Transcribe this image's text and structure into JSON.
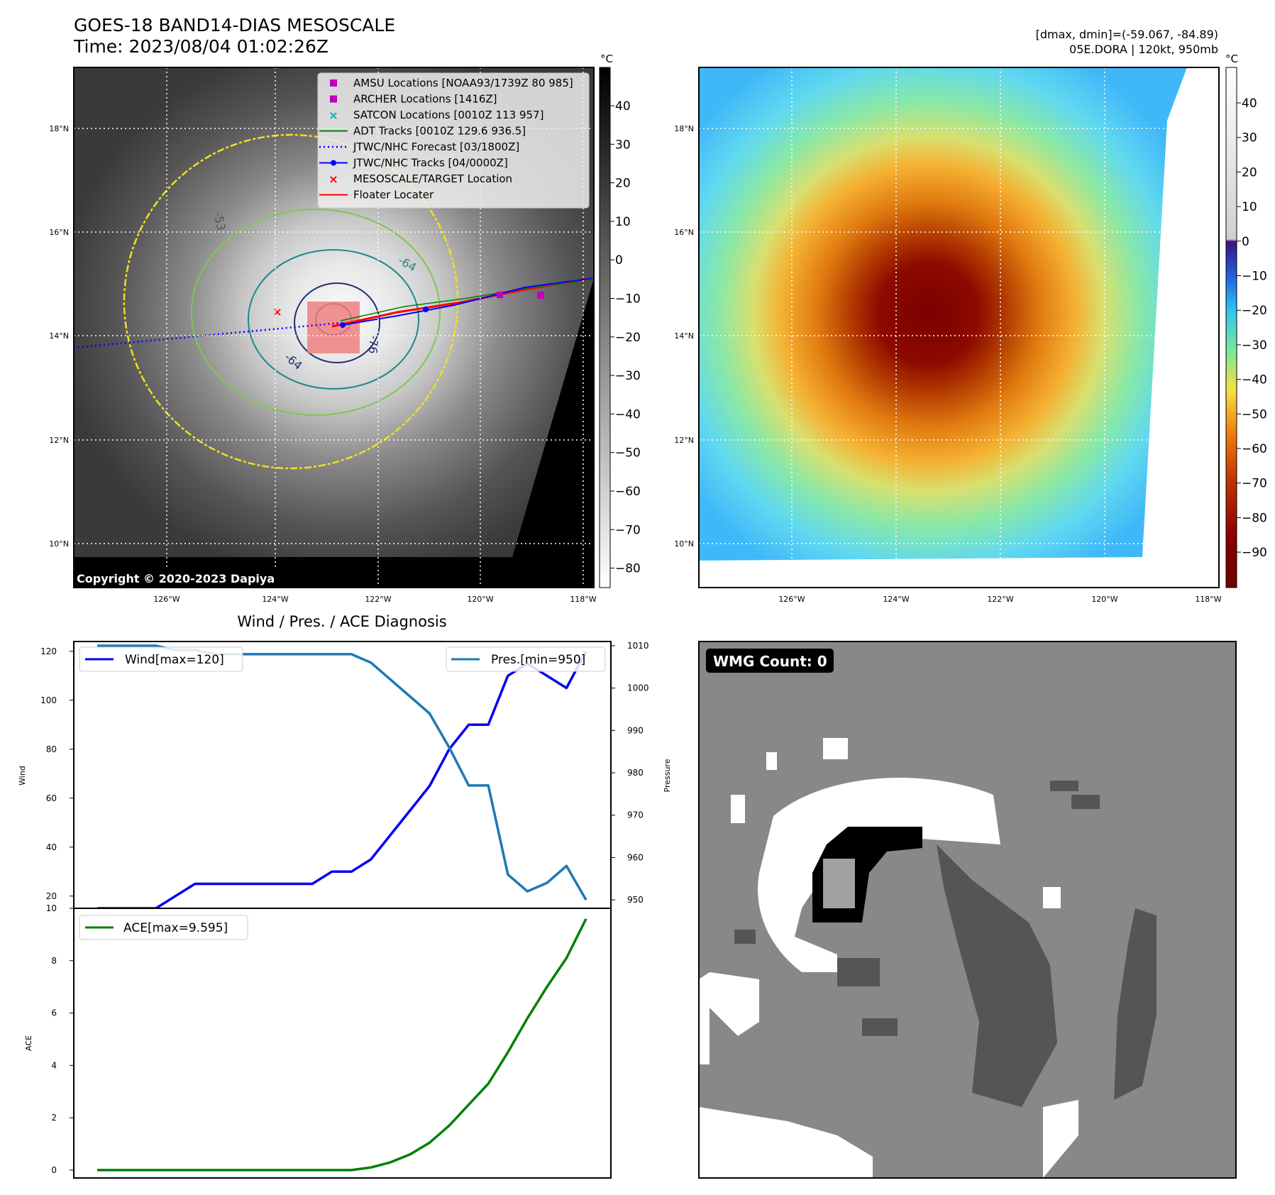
{
  "header": {
    "title_line1": "GOES-18 BAND14-DIAS MESOSCALE",
    "title_line2": "Time: 2023/08/04 01:02:26Z",
    "right_line1": "[dmax, dmin]=(-59.067, -84.89)",
    "right_line2": "05E.DORA | 120kt, 950mb"
  },
  "colorbar_unit": "°C",
  "copyright": "Copyright © 2020-2023 Dapiya",
  "map": {
    "lat_ticks": [
      "18°N",
      "16°N",
      "14°N",
      "12°N",
      "10°N"
    ],
    "lon_ticks": [
      "126°W",
      "124°W",
      "122°W",
      "120°W",
      "118°W"
    ]
  },
  "legend": [
    {
      "label": "AMSU Locations [NOAA93/1739Z 80 985]",
      "marker": "square",
      "color": "#c000c0"
    },
    {
      "label": "ARCHER Locations [1416Z]",
      "marker": "square",
      "color": "#c000c0"
    },
    {
      "label": "SATCON Locations [0010Z 113 957]",
      "marker": "x",
      "color": "#00b0b0"
    },
    {
      "label": "ADT Tracks [0010Z 129.6 936.5]",
      "marker": "line",
      "color": "#008000"
    },
    {
      "label": "JTWC/NHC Forecast [03/1800Z]",
      "marker": "dotted",
      "color": "#0000ff"
    },
    {
      "label": "JTWC/NHC Tracks [04/0000Z]",
      "marker": "line-dot",
      "color": "#0000ff"
    },
    {
      "label": "MESOSCALE/TARGET Location",
      "marker": "x",
      "color": "#ff0000"
    },
    {
      "label": "Floater Locater",
      "marker": "line",
      "color": "#ff0000"
    }
  ],
  "contour_labels": [
    "-53",
    "-64",
    "-76",
    "-64"
  ],
  "colorbar_gray_ticks": [
    "40",
    "30",
    "20",
    "10",
    "0",
    "−10",
    "−20",
    "−30",
    "−40",
    "−50",
    "−60",
    "−70",
    "−80"
  ],
  "colorbar_color_ticks": [
    "40",
    "30",
    "20",
    "10",
    "0",
    "−10",
    "−20",
    "−30",
    "−40",
    "−50",
    "−60",
    "−70",
    "−80",
    "−90"
  ],
  "wmg_count": "WMG Count: 0",
  "chart_data": [
    {
      "type": "line",
      "title": "Wind / Pres. / ACE Diagnosis",
      "ylabel": "Wind",
      "ylim": [
        15,
        124
      ],
      "yticks": [
        20,
        40,
        60,
        80,
        100,
        120
      ],
      "series": [
        {
          "name": "Wind[max=120]",
          "color": "#0000ee",
          "values": [
            15,
            15,
            15,
            15,
            20,
            25,
            25,
            25,
            25,
            25,
            25,
            25,
            30,
            30,
            35,
            45,
            55,
            65,
            80,
            90,
            90,
            110,
            115,
            110,
            105,
            120
          ]
        }
      ]
    },
    {
      "type": "line",
      "ylabel": "Pressure",
      "ylim": [
        948,
        1011
      ],
      "yticks": [
        950,
        960,
        970,
        980,
        990,
        1000,
        1010
      ],
      "series": [
        {
          "name": "Pres.[min=950]",
          "color": "#1f77b4",
          "values": [
            1010,
            1010,
            1010,
            1010,
            1009,
            1009,
            1008,
            1008,
            1008,
            1008,
            1008,
            1008,
            1008,
            1008,
            1006,
            1002,
            998,
            994,
            986,
            977,
            977,
            956,
            952,
            954,
            958,
            950
          ]
        }
      ]
    },
    {
      "type": "line",
      "ylabel": "ACE",
      "ylim": [
        -0.3,
        10
      ],
      "yticks": [
        0,
        2,
        4,
        6,
        8,
        10
      ],
      "series": [
        {
          "name": "ACE[max=9.595]",
          "color": "#008000",
          "values": [
            0,
            0,
            0,
            0,
            0,
            0,
            0,
            0,
            0,
            0,
            0,
            0,
            0,
            0,
            0.1,
            0.3,
            0.6,
            1.05,
            1.7,
            2.5,
            3.3,
            4.5,
            5.8,
            7.0,
            8.1,
            9.595
          ]
        }
      ]
    }
  ]
}
